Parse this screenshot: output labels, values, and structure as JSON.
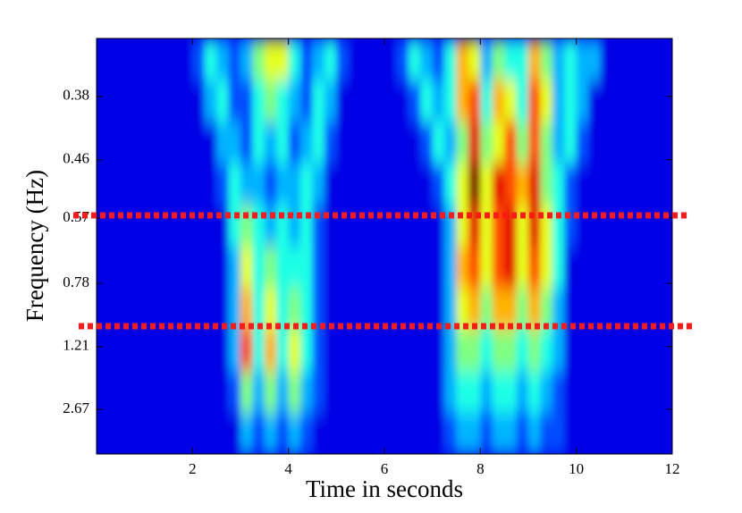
{
  "chart_data": {
    "type": "heatmap",
    "xlabel": "Time in seconds",
    "ylabel": "Frequency (Hz)",
    "xlim": [
      0,
      12
    ],
    "xticks": [
      2,
      4,
      6,
      8,
      10,
      12
    ],
    "ylim": [
      0.328,
      19.2
    ],
    "yscale": "reciprocal",
    "yticks": [
      0.38,
      0.46,
      0.57,
      0.78,
      1.21,
      2.67
    ],
    "colormap": "jet",
    "zlim": [
      0,
      10
    ],
    "z": [
      [
        1,
        1,
        1,
        1,
        1,
        1,
        1,
        1,
        2,
        4,
        3,
        2,
        3,
        5,
        6,
        6,
        4,
        2,
        3,
        4,
        2,
        1,
        1,
        1,
        1,
        2,
        4,
        3,
        2,
        4,
        7,
        6,
        3,
        5,
        4,
        4,
        7,
        5,
        3,
        4,
        3,
        3,
        1,
        1,
        1,
        1,
        1,
        1
      ],
      [
        1,
        1,
        1,
        1,
        1,
        1,
        1,
        1,
        1,
        3,
        4,
        2,
        2,
        4,
        5,
        4,
        3,
        2,
        4,
        3,
        1,
        1,
        1,
        1,
        1,
        1,
        2,
        4,
        3,
        4,
        7,
        8,
        4,
        7,
        6,
        4,
        8,
        6,
        3,
        4,
        3,
        1,
        1,
        1,
        1,
        1,
        1,
        1
      ],
      [
        1,
        1,
        1,
        1,
        1,
        1,
        1,
        1,
        1,
        1,
        3,
        3,
        2,
        4,
        3,
        4,
        2,
        3,
        4,
        2,
        1,
        1,
        1,
        1,
        1,
        1,
        1,
        2,
        4,
        3,
        5,
        9,
        5,
        6,
        8,
        5,
        8,
        5,
        3,
        4,
        2,
        1,
        1,
        1,
        1,
        1,
        1,
        1
      ],
      [
        1,
        1,
        1,
        1,
        1,
        1,
        1,
        1,
        1,
        1,
        2,
        4,
        3,
        3,
        2,
        3,
        3,
        4,
        3,
        1,
        1,
        1,
        1,
        1,
        1,
        1,
        1,
        1,
        2,
        4,
        6,
        10,
        6,
        9,
        8,
        7,
        9,
        5,
        4,
        2,
        1,
        1,
        1,
        1,
        1,
        1,
        1,
        1
      ],
      [
        1,
        1,
        1,
        1,
        1,
        1,
        1,
        1,
        1,
        1,
        1,
        4,
        5,
        4,
        3,
        4,
        3,
        4,
        2,
        1,
        1,
        1,
        1,
        1,
        1,
        1,
        1,
        1,
        1,
        3,
        6,
        9,
        6,
        8,
        9,
        6,
        9,
        6,
        4,
        2,
        1,
        1,
        1,
        1,
        1,
        1,
        1,
        1
      ],
      [
        1,
        1,
        1,
        1,
        1,
        1,
        1,
        1,
        1,
        1,
        1,
        3,
        6,
        4,
        5,
        4,
        4,
        4,
        2,
        1,
        1,
        1,
        1,
        1,
        1,
        1,
        1,
        1,
        1,
        3,
        7,
        8,
        6,
        8,
        9,
        6,
        8,
        6,
        4,
        1,
        1,
        1,
        1,
        1,
        1,
        1,
        1,
        1
      ],
      [
        1,
        1,
        1,
        1,
        1,
        1,
        1,
        1,
        1,
        1,
        1,
        3,
        7,
        4,
        6,
        4,
        5,
        4,
        2,
        1,
        1,
        1,
        1,
        1,
        1,
        1,
        1,
        1,
        1,
        3,
        6,
        7,
        5,
        7,
        7,
        5,
        7,
        5,
        3,
        1,
        1,
        1,
        1,
        1,
        1,
        1,
        1,
        1
      ],
      [
        1,
        1,
        1,
        1,
        1,
        1,
        1,
        1,
        1,
        1,
        1,
        3,
        8,
        4,
        7,
        4,
        6,
        4,
        2,
        1,
        1,
        1,
        1,
        1,
        1,
        1,
        1,
        1,
        1,
        3,
        5,
        5,
        4,
        5,
        5,
        4,
        5,
        4,
        3,
        1,
        1,
        1,
        1,
        1,
        1,
        1,
        1,
        1
      ],
      [
        1,
        1,
        1,
        1,
        1,
        1,
        1,
        1,
        1,
        1,
        1,
        2,
        5,
        3,
        5,
        3,
        5,
        3,
        2,
        1,
        1,
        1,
        1,
        1,
        1,
        1,
        1,
        1,
        1,
        3,
        4,
        4,
        3,
        4,
        4,
        3,
        4,
        3,
        2,
        1,
        1,
        1,
        1,
        1,
        1,
        1,
        1,
        1
      ],
      [
        1,
        1,
        1,
        1,
        1,
        1,
        1,
        1,
        1,
        1,
        1,
        1,
        3,
        2,
        3,
        2,
        3,
        2,
        1,
        1,
        1,
        1,
        1,
        1,
        1,
        1,
        1,
        1,
        1,
        2,
        3,
        3,
        2,
        3,
        3,
        2,
        3,
        2,
        2,
        1,
        1,
        1,
        1,
        1,
        1,
        1,
        1,
        1
      ]
    ]
  }
}
